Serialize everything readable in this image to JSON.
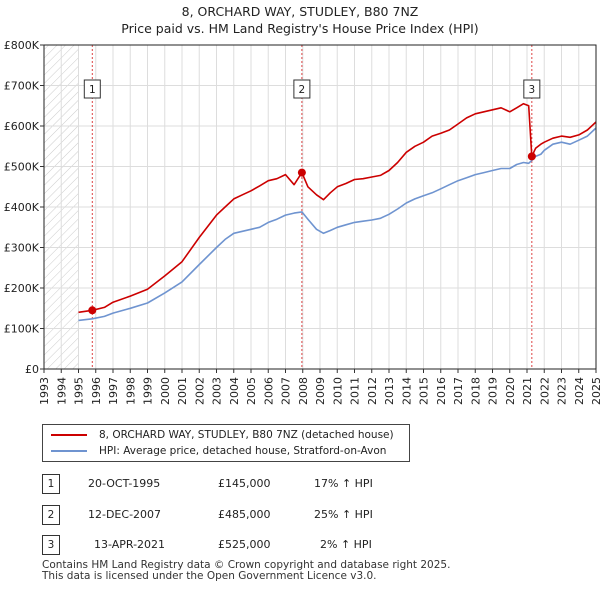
{
  "title_line1": "8, ORCHARD WAY, STUDLEY, B80 7NZ",
  "title_line2": "Price paid vs. HM Land Registry's House Price Index (HPI)",
  "chart_data": {
    "type": "line",
    "title": "8, ORCHARD WAY, STUDLEY, B80 7NZ — Price paid vs. HM Land Registry's House Price Index (HPI)",
    "xlabel": "",
    "ylabel": "",
    "xlim": [
      1993,
      2025
    ],
    "ylim": [
      0,
      800000
    ],
    "x_ticks": [
      "1993",
      "1994",
      "1995",
      "1996",
      "1997",
      "1998",
      "1999",
      "2000",
      "2001",
      "2002",
      "2003",
      "2004",
      "2005",
      "2006",
      "2007",
      "2008",
      "2009",
      "2010",
      "2011",
      "2012",
      "2013",
      "2014",
      "2015",
      "2016",
      "2017",
      "2018",
      "2019",
      "2020",
      "2021",
      "2022",
      "2023",
      "2024",
      "2025"
    ],
    "y_ticks": [
      {
        "value": 0,
        "label": "£0"
      },
      {
        "value": 100000,
        "label": "£100K"
      },
      {
        "value": 200000,
        "label": "£200K"
      },
      {
        "value": 300000,
        "label": "£300K"
      },
      {
        "value": 400000,
        "label": "£400K"
      },
      {
        "value": 500000,
        "label": "£500K"
      },
      {
        "value": 600000,
        "label": "£600K"
      },
      {
        "value": 700000,
        "label": "£700K"
      },
      {
        "value": 800000,
        "label": "£800K"
      }
    ],
    "hatched_ranges": [
      [
        1993,
        1995.0
      ],
      [
        2025.0,
        2025.5
      ]
    ],
    "series": [
      {
        "name": "8, ORCHARD WAY, STUDLEY, B80 7NZ (detached house)",
        "color": "#cc0000",
        "x": [
          1995.0,
          1995.8,
          1996.5,
          1997,
          1998,
          1999,
          2000,
          2001,
          2002,
          2003,
          2003.5,
          2004,
          2004.5,
          2005,
          2005.5,
          2006,
          2006.5,
          2007,
          2007.5,
          2007.95,
          2008.3,
          2008.8,
          2009.2,
          2009.6,
          2010,
          2010.5,
          2011,
          2011.5,
          2012,
          2012.5,
          2013,
          2013.5,
          2014,
          2014.5,
          2015,
          2015.5,
          2016,
          2016.5,
          2017,
          2017.5,
          2018,
          2018.5,
          2019,
          2019.5,
          2020,
          2020.4,
          2020.8,
          2021.1,
          2021.28,
          2021.5,
          2021.8,
          2022,
          2022.5,
          2023,
          2023.5,
          2024,
          2024.5,
          2025
        ],
        "y": [
          140000,
          145000,
          152000,
          165000,
          180000,
          197000,
          230000,
          265000,
          325000,
          380000,
          400000,
          420000,
          430000,
          440000,
          452000,
          465000,
          470000,
          480000,
          455000,
          485000,
          450000,
          430000,
          418000,
          435000,
          450000,
          458000,
          468000,
          470000,
          474000,
          478000,
          490000,
          510000,
          535000,
          550000,
          560000,
          575000,
          582000,
          590000,
          605000,
          620000,
          630000,
          635000,
          640000,
          645000,
          635000,
          645000,
          655000,
          650000,
          525000,
          545000,
          555000,
          560000,
          570000,
          575000,
          572000,
          578000,
          590000,
          610000
        ]
      },
      {
        "name": "HPI: Average price, detached house, Stratford-on-Avon",
        "color": "#6f94d0",
        "x": [
          1995.0,
          1995.8,
          1996.5,
          1997,
          1998,
          1999,
          2000,
          2001,
          2002,
          2003,
          2003.5,
          2004,
          2004.5,
          2005,
          2005.5,
          2006,
          2006.5,
          2007,
          2007.5,
          2007.95,
          2008.3,
          2008.8,
          2009.2,
          2009.6,
          2010,
          2010.5,
          2011,
          2011.5,
          2012,
          2012.5,
          2013,
          2013.5,
          2014,
          2014.5,
          2015,
          2015.5,
          2016,
          2016.5,
          2017,
          2017.5,
          2018,
          2018.5,
          2019,
          2019.5,
          2020,
          2020.4,
          2020.8,
          2021.1,
          2021.28,
          2021.5,
          2021.8,
          2022,
          2022.5,
          2023,
          2023.5,
          2024,
          2024.5,
          2025
        ],
        "y": [
          120000,
          124000,
          130000,
          138000,
          150000,
          163000,
          188000,
          215000,
          258000,
          300000,
          320000,
          335000,
          340000,
          345000,
          350000,
          362000,
          370000,
          380000,
          385000,
          388000,
          370000,
          345000,
          335000,
          342000,
          350000,
          356000,
          362000,
          365000,
          368000,
          372000,
          382000,
          395000,
          410000,
          420000,
          428000,
          435000,
          445000,
          455000,
          465000,
          472000,
          480000,
          485000,
          490000,
          495000,
          495000,
          505000,
          510000,
          508000,
          515000,
          525000,
          530000,
          540000,
          555000,
          560000,
          555000,
          565000,
          575000,
          595000
        ]
      }
    ],
    "sales": [
      {
        "num": "1",
        "x": 1995.8,
        "y": 145000
      },
      {
        "num": "2",
        "x": 2007.95,
        "y": 485000
      },
      {
        "num": "3",
        "x": 2021.28,
        "y": 525000
      }
    ]
  },
  "legend": {
    "property_label": "8, ORCHARD WAY, STUDLEY, B80 7NZ (detached house)",
    "hpi_label": "HPI: Average price, detached house, Stratford-on-Avon"
  },
  "transactions": [
    {
      "num": "1",
      "date": "20-OCT-1995",
      "price": "£145,000",
      "hpi": "17% ↑ HPI"
    },
    {
      "num": "2",
      "date": "12-DEC-2007",
      "price": "£485,000",
      "hpi": "25% ↑ HPI"
    },
    {
      "num": "3",
      "date": "13-APR-2021",
      "price": "£525,000",
      "hpi": "2% ↑ HPI"
    }
  ],
  "footer_line1": "Contains HM Land Registry data © Crown copyright and database right 2025.",
  "footer_line2": "This data is licensed under the Open Government Licence v3.0."
}
